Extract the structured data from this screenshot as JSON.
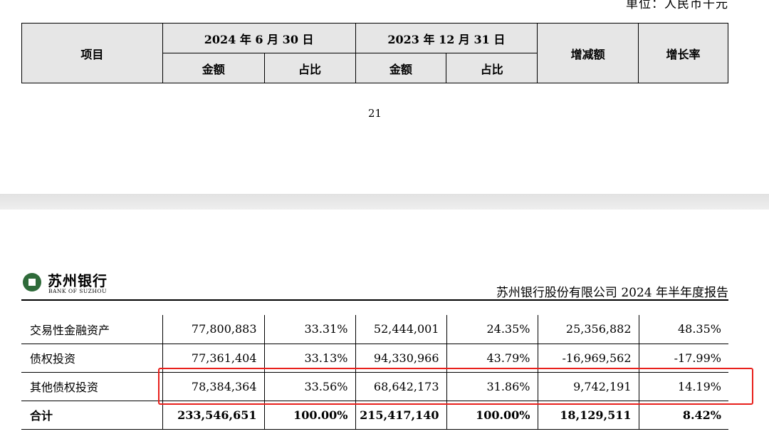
{
  "unit": "单位：人民币千元",
  "header_table": {
    "item_label": "项目",
    "period1": "2024 年 6 月 30 日",
    "period2": "2023 年 12 月 31 日",
    "amount_label": "金额",
    "ratio_label": "占比",
    "change_label": "增减额",
    "growth_label": "增长率"
  },
  "page_number": "21",
  "logo": {
    "cn": "苏州银行",
    "en": "BANK OF SUZHOU",
    "color": "#2f6b3a"
  },
  "report_title": "苏州银行股份有限公司  2024  年半年度报告",
  "rows": [
    {
      "name": "交易性金融资产",
      "amt1": "77,800,883",
      "pct1": "33.31%",
      "amt2": "52,444,001",
      "pct2": "24.35%",
      "change": "25,356,882",
      "growth": "48.35%"
    },
    {
      "name": "债权投资",
      "amt1": "77,361,404",
      "pct1": "33.13%",
      "amt2": "94,330,966",
      "pct2": "43.79%",
      "change": "-16,969,562",
      "growth": "-17.99%"
    },
    {
      "name": "其他债权投资",
      "amt1": "78,384,364",
      "pct1": "33.56%",
      "amt2": "68,642,173",
      "pct2": "31.86%",
      "change": "9,742,191",
      "growth": "14.19%"
    },
    {
      "name": "合计",
      "amt1": "233,546,651",
      "pct1": "100.00%",
      "amt2": "215,417,140",
      "pct2": "100.00%",
      "change": "18,129,511",
      "growth": "8.42%"
    }
  ],
  "highlight_color": "#e8201c"
}
